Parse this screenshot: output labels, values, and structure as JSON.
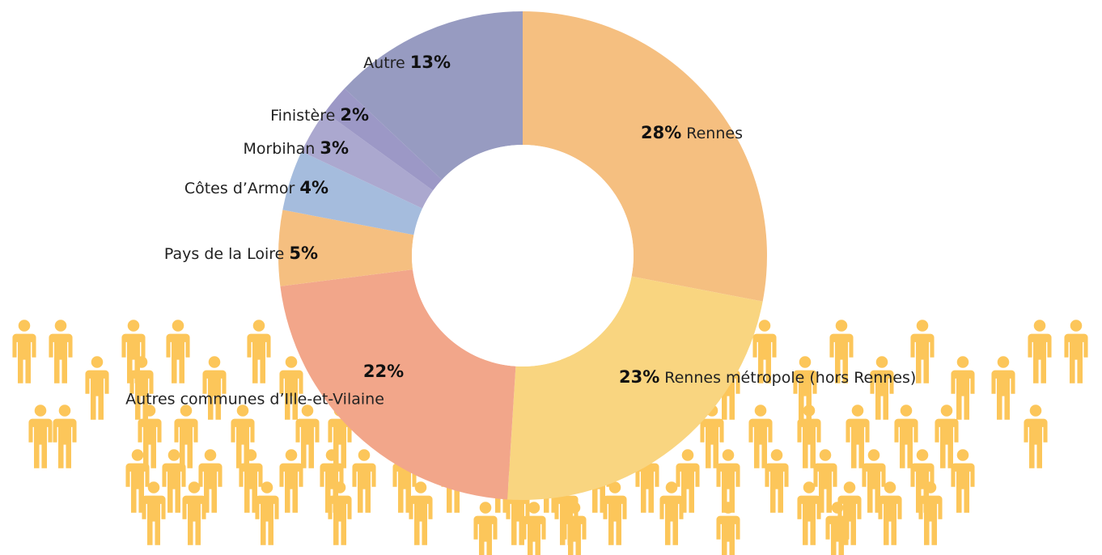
{
  "chart_data": {
    "type": "pie",
    "donut": true,
    "categories": [
      "Rennes",
      "Rennes métropole (hors Rennes)",
      "Autres communes d’Ille-et-Vilaine",
      "Pays de la Loire",
      "Côtes d’Armor",
      "Morbihan",
      "Finistère",
      "Autre"
    ],
    "values": [
      28,
      23,
      22,
      5,
      4,
      3,
      2,
      13
    ],
    "value_labels": [
      "28%",
      "23%",
      "22%",
      "5%",
      "4%",
      "3%",
      "2%",
      "13%"
    ],
    "colors": [
      "#f5bf80",
      "#f9d580",
      "#f2a68a",
      "#f5bf80",
      "#a5bcdd",
      "#aba8cf",
      "#9c98c6",
      "#979bc1"
    ]
  }
}
